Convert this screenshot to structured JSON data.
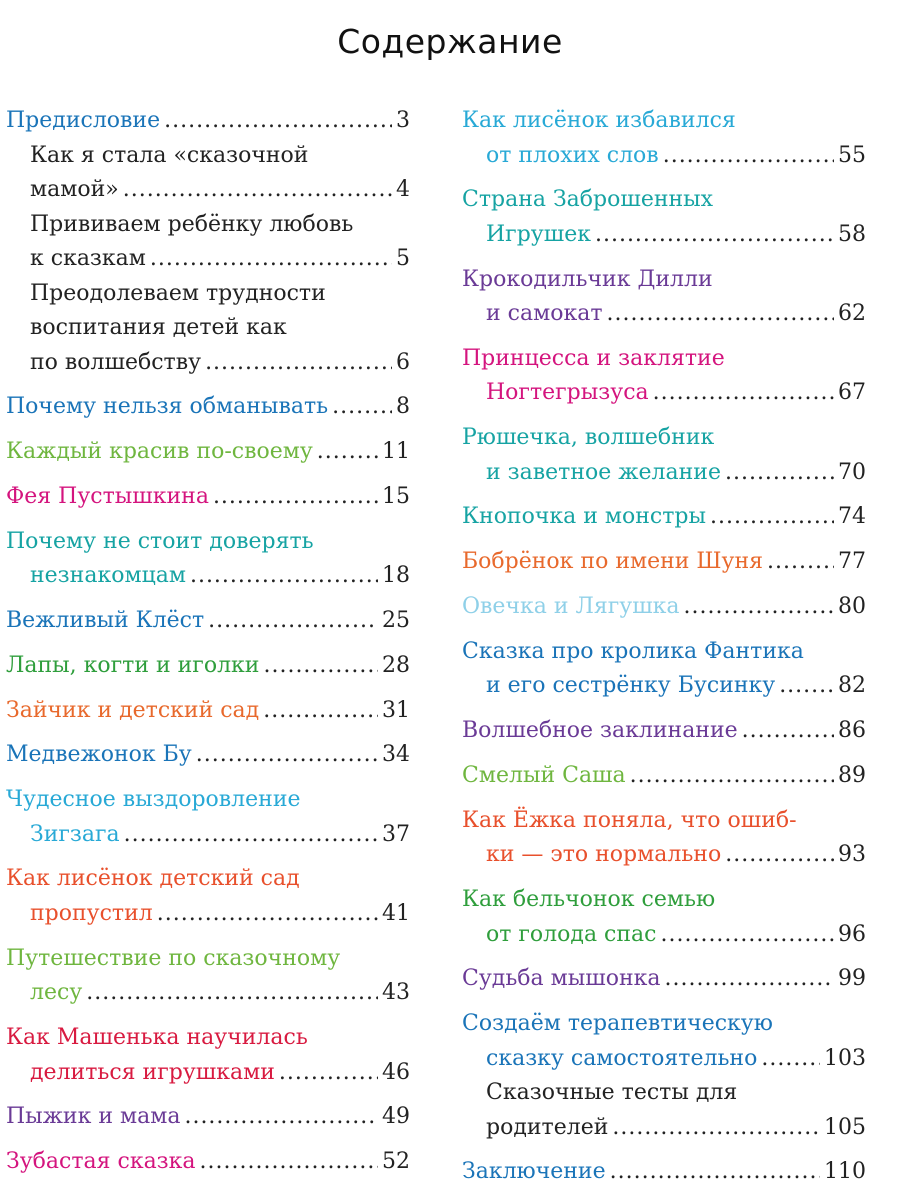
{
  "title": "Содержание",
  "left": [
    {
      "lines": [
        "Предисловие"
      ],
      "page": "3",
      "color": "#1a74b8"
    },
    {
      "sub": true,
      "lines": [
        "Как я стала «сказочной",
        "мамой»"
      ],
      "page": "4",
      "color": "#222222"
    },
    {
      "sub": true,
      "lines": [
        "Прививаем ребёнку любовь",
        "к сказкам"
      ],
      "page": "5",
      "color": "#222222"
    },
    {
      "sub": true,
      "lines": [
        "Преодолеваем трудности",
        "воспитания детей как",
        "по волшебству"
      ],
      "page": "6",
      "color": "#222222"
    },
    {
      "lines": [
        "Почему нельзя обманывать"
      ],
      "page": "8",
      "color": "#1a74b8"
    },
    {
      "lines": [
        "Каждый красив по-своему"
      ],
      "page": "11",
      "color": "#6fb63f"
    },
    {
      "lines": [
        "Фея Пустышкина"
      ],
      "page": "15",
      "color": "#d4147e"
    },
    {
      "lines": [
        "Почему не стоит доверять",
        "незнакомцам"
      ],
      "page": "18",
      "color": "#16a3a3"
    },
    {
      "lines": [
        "Вежливый Клёст"
      ],
      "page": "25",
      "color": "#1a74b8"
    },
    {
      "lines": [
        "Лапы, когти и иголки"
      ],
      "page": "28",
      "color": "#2f9e3c"
    },
    {
      "lines": [
        "Зайчик и детский сад"
      ],
      "page": "31",
      "color": "#e8692c"
    },
    {
      "lines": [
        "Медвежонок Бу"
      ],
      "page": "34",
      "color": "#1a74b8"
    },
    {
      "lines": [
        "Чудесное выздоровление",
        "Зигзага"
      ],
      "page": "37",
      "color": "#28a9d6"
    },
    {
      "lines": [
        "Как лисёнок детский сад",
        "пропустил"
      ],
      "page": "41",
      "color": "#e8502c"
    },
    {
      "lines": [
        "Путешествие по сказочному",
        "лесу"
      ],
      "page": "43",
      "color": "#6fb63f"
    },
    {
      "lines": [
        "Как Машенька научилась",
        "делиться игрушками"
      ],
      "page": "46",
      "color": "#d81a40"
    },
    {
      "lines": [
        "Пыжик и мама"
      ],
      "page": "49",
      "color": "#6a3a96"
    },
    {
      "lines": [
        "Зубастая сказка"
      ],
      "page": "52",
      "color": "#d4147e"
    }
  ],
  "right": [
    {
      "lines": [
        "Как лисёнок избавился",
        "от плохих слов"
      ],
      "page": "55",
      "color": "#28a9d6"
    },
    {
      "lines": [
        "Страна Заброшенных",
        "Игрушек"
      ],
      "page": "58",
      "color": "#16a3a3"
    },
    {
      "lines": [
        "Крокодильчик Дилли",
        "и самокат"
      ],
      "page": "62",
      "color": "#6a3a96"
    },
    {
      "lines": [
        "Принцесса и заклятие",
        "Ногтегрызуса"
      ],
      "page": "67",
      "color": "#d4147e"
    },
    {
      "lines": [
        "Рюшечка, волшебник",
        "и заветное желание"
      ],
      "page": "70",
      "color": "#16a3a3"
    },
    {
      "lines": [
        "Кнопочка и монстры"
      ],
      "page": "74",
      "color": "#16a3a3"
    },
    {
      "lines": [
        "Бобрёнок по имени Шуня"
      ],
      "page": "77",
      "color": "#e8692c"
    },
    {
      "lines": [
        "Овечка и Лягушка"
      ],
      "page": "80",
      "color": "#8fd0e8"
    },
    {
      "lines": [
        "Сказка про кролика Фантика",
        "и его сестрёнку Бусинку"
      ],
      "page": "82",
      "color": "#1a74b8"
    },
    {
      "lines": [
        "Волшебное заклинание"
      ],
      "page": "86",
      "color": "#6a3a96"
    },
    {
      "lines": [
        "Смелый Саша"
      ],
      "page": "89",
      "color": "#6fb63f"
    },
    {
      "lines": [
        "Как Ёжка поняла, что ошиб-",
        "ки — это нормально"
      ],
      "page": "93",
      "color": "#e8502c"
    },
    {
      "lines": [
        "Как бельчонок семью",
        "от голода спас"
      ],
      "page": "96",
      "color": "#2f9e3c"
    },
    {
      "lines": [
        "Судьба мышонка"
      ],
      "page": "99",
      "color": "#6a3a96"
    },
    {
      "lines": [
        "Создаём терапевтическую",
        "сказку самостоятельно"
      ],
      "page": "103",
      "color": "#1a74b8"
    },
    {
      "sub": true,
      "lines": [
        "Сказочные тесты для",
        "родителей"
      ],
      "page": "105",
      "color": "#222222"
    },
    {
      "lines": [
        "Заключение"
      ],
      "page": "110",
      "color": "#1a74b8"
    }
  ]
}
